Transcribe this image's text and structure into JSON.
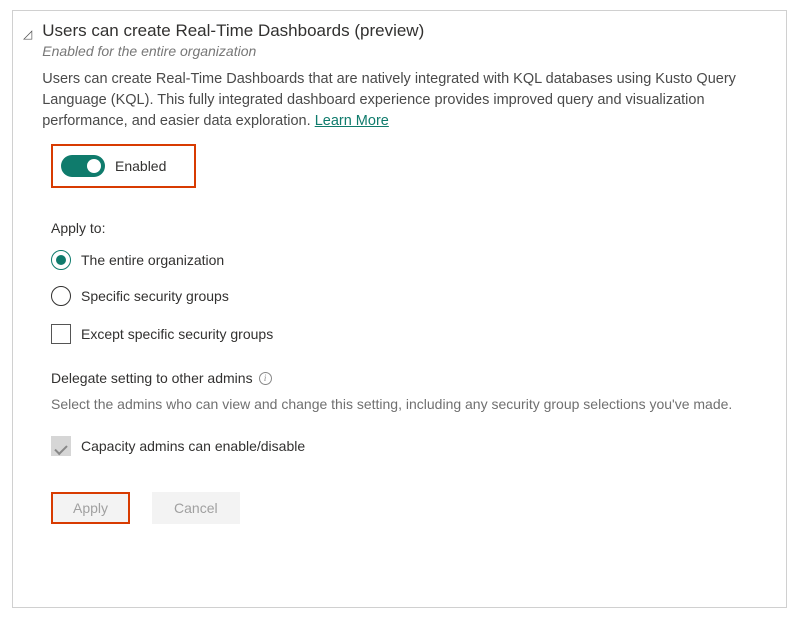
{
  "title": "Users can create Real-Time Dashboards (preview)",
  "subtitle": "Enabled for the entire organization",
  "description": "Users can create Real-Time Dashboards that are natively integrated with KQL databases using Kusto Query Language (KQL). This fully integrated dashboard experience provides improved query and visualization performance, and easier data exploration.  ",
  "learn_more": "Learn More",
  "toggle": {
    "label": "Enabled",
    "on": true
  },
  "apply_to": {
    "label": "Apply to:",
    "options": [
      {
        "label": "The entire organization",
        "selected": true
      },
      {
        "label": "Specific security groups",
        "selected": false
      }
    ],
    "except_label": "Except specific security groups",
    "except_checked": false
  },
  "delegate": {
    "title": "Delegate setting to other admins",
    "description": "Select the admins who can view and change this setting, including any security group selections you've made.",
    "capacity_label": "Capacity admins can enable/disable",
    "capacity_checked": true
  },
  "buttons": {
    "apply": "Apply",
    "cancel": "Cancel"
  },
  "colors": {
    "accent": "#0f7b6c",
    "highlight_border": "#d83b01",
    "text": "#323130",
    "muted": "#707070"
  }
}
